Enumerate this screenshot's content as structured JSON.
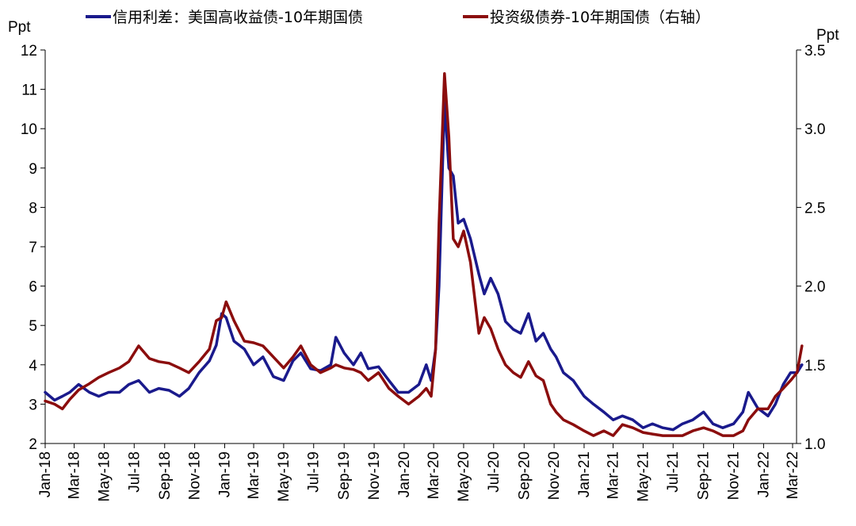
{
  "chart_data": {
    "type": "line",
    "title": "",
    "legend_position": "top",
    "grid": false,
    "left_axis": {
      "unit_label": "Ppt",
      "ylim": [
        2,
        12
      ],
      "ticks": [
        "2",
        "3",
        "4",
        "5",
        "6",
        "7",
        "8",
        "9",
        "10",
        "11",
        "12"
      ]
    },
    "right_axis": {
      "unit_label": "Ppt",
      "ylim": [
        1.0,
        3.5
      ],
      "ticks": [
        "1.0",
        "1.5",
        "2.0",
        "2.5",
        "3.0",
        "3.5"
      ]
    },
    "x_ticks": [
      "Jan-18",
      "Mar-18",
      "May-18",
      "Jul-18",
      "Sep-18",
      "Nov-18",
      "Jan-19",
      "Mar-19",
      "May-19",
      "Jul-19",
      "Sep-19",
      "Nov-19",
      "Jan-20",
      "Mar-20",
      "May-20",
      "Jul-20",
      "Sep-20",
      "Nov-20",
      "Jan-21",
      "Mar-21",
      "May-21",
      "Jul-21",
      "Sep-21",
      "Nov-21",
      "Jan-22",
      "Mar-22"
    ],
    "series": [
      {
        "name": "信用利差：美国高收益债-10年期国债",
        "axis": "left",
        "color": "#1a1a8c",
        "x": [
          "2018-01-01",
          "2018-01-20",
          "2018-02-05",
          "2018-02-20",
          "2018-03-10",
          "2018-04-01",
          "2018-04-20",
          "2018-05-10",
          "2018-06-01",
          "2018-06-20",
          "2018-07-10",
          "2018-08-01",
          "2018-08-20",
          "2018-09-10",
          "2018-10-01",
          "2018-10-20",
          "2018-11-10",
          "2018-12-01",
          "2018-12-15",
          "2018-12-26",
          "2019-01-04",
          "2019-01-20",
          "2019-02-10",
          "2019-03-01",
          "2019-03-20",
          "2019-04-10",
          "2019-05-01",
          "2019-05-20",
          "2019-06-05",
          "2019-06-25",
          "2019-07-15",
          "2019-08-05",
          "2019-08-15",
          "2019-09-01",
          "2019-09-20",
          "2019-10-05",
          "2019-10-20",
          "2019-11-10",
          "2019-12-01",
          "2019-12-20",
          "2020-01-10",
          "2020-01-31",
          "2020-02-15",
          "2020-02-25",
          "2020-03-05",
          "2020-03-12",
          "2020-03-23",
          "2020-04-01",
          "2020-04-10",
          "2020-04-20",
          "2020-05-01",
          "2020-05-15",
          "2020-06-01",
          "2020-06-12",
          "2020-06-25",
          "2020-07-10",
          "2020-07-25",
          "2020-08-10",
          "2020-08-25",
          "2020-09-10",
          "2020-09-25",
          "2020-10-10",
          "2020-10-25",
          "2020-11-05",
          "2020-11-20",
          "2020-12-10",
          "2021-01-01",
          "2021-01-20",
          "2021-02-10",
          "2021-03-01",
          "2021-03-20",
          "2021-04-10",
          "2021-05-01",
          "2021-05-20",
          "2021-06-10",
          "2021-07-01",
          "2021-07-20",
          "2021-08-10",
          "2021-09-01",
          "2021-09-20",
          "2021-10-10",
          "2021-11-01",
          "2021-11-20",
          "2021-12-01",
          "2021-12-20",
          "2022-01-10",
          "2022-01-25",
          "2022-02-10",
          "2022-02-25",
          "2022-03-10",
          "2022-03-20"
        ],
        "values": [
          3.3,
          3.1,
          3.2,
          3.3,
          3.5,
          3.3,
          3.2,
          3.3,
          3.3,
          3.5,
          3.6,
          3.3,
          3.4,
          3.35,
          3.2,
          3.4,
          3.8,
          4.1,
          4.5,
          5.3,
          5.2,
          4.6,
          4.4,
          4.0,
          4.2,
          3.7,
          3.6,
          4.1,
          4.3,
          3.9,
          3.85,
          4.0,
          4.7,
          4.3,
          4.0,
          4.3,
          3.9,
          3.95,
          3.6,
          3.3,
          3.3,
          3.5,
          4.0,
          3.6,
          4.4,
          6.0,
          10.7,
          9.0,
          8.8,
          7.6,
          7.7,
          7.2,
          6.3,
          5.8,
          6.2,
          5.8,
          5.1,
          4.9,
          4.8,
          5.3,
          4.6,
          4.8,
          4.4,
          4.2,
          3.8,
          3.6,
          3.2,
          3.0,
          2.8,
          2.6,
          2.7,
          2.6,
          2.4,
          2.5,
          2.4,
          2.35,
          2.5,
          2.6,
          2.8,
          2.5,
          2.4,
          2.5,
          2.8,
          3.3,
          2.9,
          2.7,
          3.0,
          3.5,
          3.8,
          3.8,
          4.0
        ]
      },
      {
        "name": "投资级债券-10年期国债（右轴）",
        "axis": "right",
        "color": "#8b0d0d",
        "x": [
          "2018-01-01",
          "2018-01-20",
          "2018-02-05",
          "2018-02-20",
          "2018-03-10",
          "2018-04-01",
          "2018-04-20",
          "2018-05-10",
          "2018-06-01",
          "2018-06-20",
          "2018-07-10",
          "2018-08-01",
          "2018-08-20",
          "2018-09-10",
          "2018-10-01",
          "2018-10-20",
          "2018-11-10",
          "2018-12-01",
          "2018-12-15",
          "2018-12-26",
          "2019-01-04",
          "2019-01-20",
          "2019-02-10",
          "2019-03-01",
          "2019-03-20",
          "2019-04-10",
          "2019-05-01",
          "2019-05-20",
          "2019-06-05",
          "2019-06-25",
          "2019-07-15",
          "2019-08-05",
          "2019-08-15",
          "2019-09-01",
          "2019-09-20",
          "2019-10-05",
          "2019-10-20",
          "2019-11-10",
          "2019-12-01",
          "2019-12-20",
          "2020-01-10",
          "2020-01-31",
          "2020-02-15",
          "2020-02-25",
          "2020-03-05",
          "2020-03-12",
          "2020-03-23",
          "2020-04-01",
          "2020-04-10",
          "2020-04-20",
          "2020-05-01",
          "2020-05-15",
          "2020-06-01",
          "2020-06-12",
          "2020-06-25",
          "2020-07-10",
          "2020-07-25",
          "2020-08-10",
          "2020-08-25",
          "2020-09-10",
          "2020-09-25",
          "2020-10-10",
          "2020-10-25",
          "2020-11-05",
          "2020-11-20",
          "2020-12-10",
          "2021-01-01",
          "2021-01-20",
          "2021-02-10",
          "2021-03-01",
          "2021-03-20",
          "2021-04-10",
          "2021-05-01",
          "2021-05-20",
          "2021-06-10",
          "2021-07-01",
          "2021-07-20",
          "2021-08-10",
          "2021-09-01",
          "2021-09-20",
          "2021-10-10",
          "2021-11-01",
          "2021-11-20",
          "2021-12-01",
          "2021-12-20",
          "2022-01-10",
          "2022-01-25",
          "2022-02-10",
          "2022-02-25",
          "2022-03-10",
          "2022-03-20"
        ],
        "values": [
          1.27,
          1.25,
          1.22,
          1.28,
          1.34,
          1.38,
          1.42,
          1.45,
          1.48,
          1.52,
          1.62,
          1.54,
          1.52,
          1.51,
          1.48,
          1.45,
          1.52,
          1.6,
          1.78,
          1.8,
          1.9,
          1.78,
          1.65,
          1.64,
          1.62,
          1.55,
          1.48,
          1.55,
          1.62,
          1.5,
          1.45,
          1.48,
          1.5,
          1.48,
          1.47,
          1.45,
          1.4,
          1.45,
          1.35,
          1.3,
          1.25,
          1.3,
          1.35,
          1.3,
          1.6,
          2.4,
          3.35,
          2.95,
          2.3,
          2.25,
          2.35,
          2.15,
          1.7,
          1.8,
          1.73,
          1.6,
          1.5,
          1.45,
          1.42,
          1.52,
          1.43,
          1.4,
          1.25,
          1.2,
          1.15,
          1.12,
          1.08,
          1.05,
          1.08,
          1.05,
          1.12,
          1.1,
          1.07,
          1.06,
          1.05,
          1.05,
          1.05,
          1.08,
          1.1,
          1.08,
          1.05,
          1.05,
          1.08,
          1.15,
          1.22,
          1.22,
          1.3,
          1.35,
          1.4,
          1.45,
          1.62
        ]
      }
    ]
  }
}
